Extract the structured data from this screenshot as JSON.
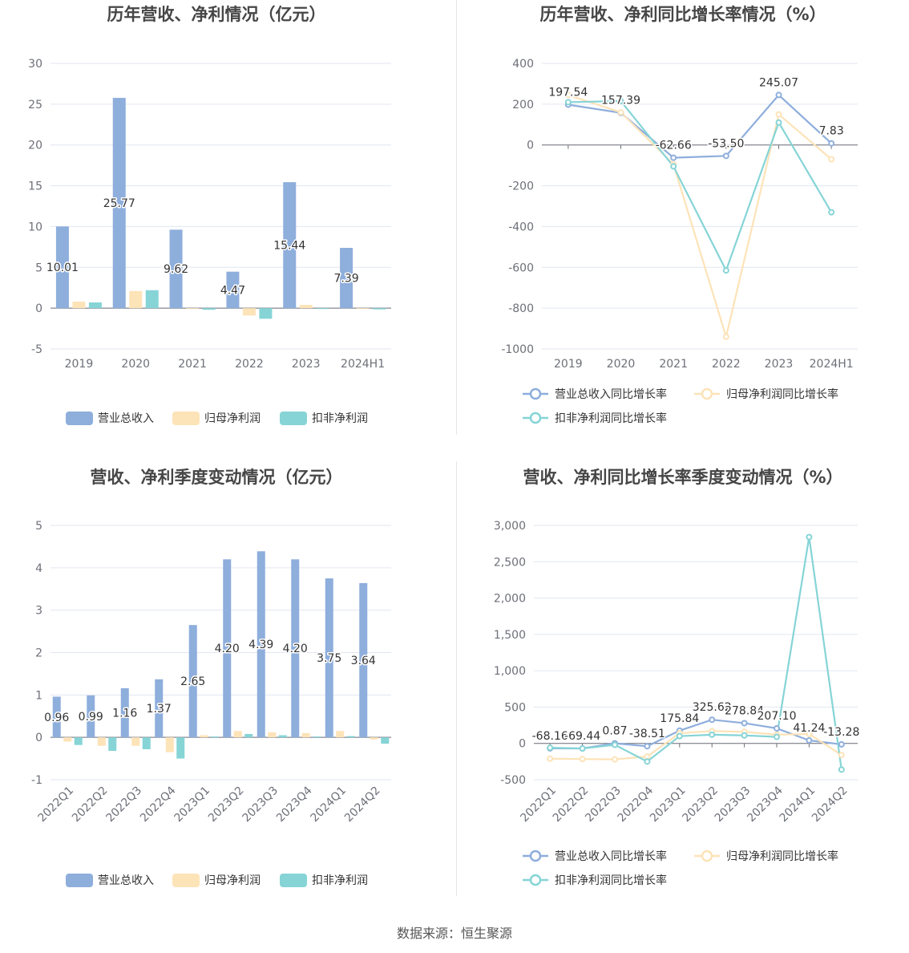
{
  "colors": {
    "revenue": "#8eaedc",
    "parent_profit": "#fde3b8",
    "deducted_profit": "#86d4d6",
    "revenue_line": "#8eaedc",
    "parent_line": "#fde3b8",
    "deducted_line": "#86d4d6"
  },
  "source": "数据来源：恒生聚源",
  "chart_data": [
    {
      "type": "bar",
      "title": "历年营收、净利情况（亿元）",
      "categories": [
        "2019",
        "2020",
        "2021",
        "2022",
        "2023",
        "2024H1"
      ],
      "ylim": [
        -5,
        30
      ],
      "yticks": [
        -5,
        0,
        5,
        10,
        15,
        20,
        25,
        30
      ],
      "legend_position": "bottom",
      "series": [
        {
          "name": "营业总收入",
          "values": [
            10.01,
            25.77,
            9.62,
            4.47,
            15.44,
            7.39
          ],
          "labels": [
            "10.01",
            "25.77",
            "9.62",
            "4.47",
            "15.44",
            "7.39"
          ]
        },
        {
          "name": "归母净利润",
          "values": [
            0.8,
            2.1,
            -0.1,
            -0.9,
            0.4,
            -0.1
          ]
        },
        {
          "name": "扣非净利润",
          "values": [
            0.7,
            2.2,
            -0.2,
            -1.3,
            -0.1,
            -0.15
          ]
        }
      ]
    },
    {
      "type": "line",
      "title": "历年营收、净利同比增长率情况（%）",
      "categories": [
        "2019",
        "2020",
        "2021",
        "2022",
        "2023",
        "2024H1"
      ],
      "ylim": [
        -1000,
        400
      ],
      "yticks": [
        -1000,
        -800,
        -600,
        -400,
        -200,
        0,
        200,
        400
      ],
      "legend_position": "bottom",
      "series": [
        {
          "name": "营业总收入同比增长率",
          "values": [
            197.54,
            157.39,
            -62.66,
            -53.5,
            245.07,
            7.83
          ],
          "labels": [
            "197.54",
            "157.39",
            "-62.66",
            "-53.50",
            "245.07",
            "7.83"
          ]
        },
        {
          "name": "归母净利润同比增长率",
          "values": [
            245,
            160,
            -95,
            -940,
            150,
            -70
          ]
        },
        {
          "name": "扣非净利润同比增长率",
          "values": [
            210,
            215,
            -105,
            -615,
            110,
            -330
          ]
        }
      ]
    },
    {
      "type": "bar",
      "title": "营收、净利季度变动情况（亿元）",
      "categories": [
        "2022Q1",
        "2022Q2",
        "2022Q3",
        "2022Q4",
        "2023Q1",
        "2023Q2",
        "2023Q3",
        "2023Q4",
        "2024Q1",
        "2024Q2"
      ],
      "ylim": [
        -1,
        5
      ],
      "yticks": [
        -1,
        0,
        1,
        2,
        3,
        4,
        5
      ],
      "legend_position": "bottom",
      "series": [
        {
          "name": "营业总收入",
          "values": [
            0.96,
            0.99,
            1.16,
            1.37,
            2.65,
            4.2,
            4.39,
            4.2,
            3.75,
            3.64
          ],
          "labels": [
            "0.96",
            "0.99",
            "1.16",
            "1.37",
            "2.65",
            "4.20",
            "4.39",
            "4.20",
            "3.75",
            "3.64"
          ]
        },
        {
          "name": "归母净利润",
          "values": [
            -0.1,
            -0.2,
            -0.2,
            -0.35,
            0.05,
            0.15,
            0.12,
            0.1,
            0.15,
            -0.05
          ]
        },
        {
          "name": "扣非净利润",
          "values": [
            -0.18,
            -0.32,
            -0.28,
            -0.5,
            0.02,
            0.08,
            0.05,
            0.02,
            0.03,
            -0.15
          ]
        }
      ]
    },
    {
      "type": "line",
      "title": "营收、净利同比增长率季度变动情况（%）",
      "categories": [
        "2022Q1",
        "2022Q2",
        "2022Q3",
        "2022Q4",
        "2023Q1",
        "2023Q2",
        "2023Q3",
        "2023Q4",
        "2024Q1",
        "2024Q2"
      ],
      "ylim": [
        -500,
        3000
      ],
      "yticks": [
        -500,
        0,
        500,
        1000,
        1500,
        2000,
        2500,
        3000
      ],
      "yticklabels": [
        "-500",
        "0",
        "500",
        "1,000",
        "1,500",
        "2,000",
        "2,500",
        "3,000"
      ],
      "legend_position": "bottom",
      "series": [
        {
          "name": "营业总收入同比增长率",
          "values": [
            -68.16,
            -69.44,
            0.87,
            -38.51,
            175.84,
            325.62,
            278.84,
            207.1,
            41.24,
            -13.28
          ],
          "labels": [
            "-68.16",
            "-69.44",
            "0.87",
            "-38.51",
            "175.84",
            "325.62",
            "278.84",
            "207.10",
            "41.24",
            "-13.28"
          ]
        },
        {
          "name": "归母净利润同比增长率",
          "values": [
            -210,
            -215,
            -220,
            -180,
            140,
            170,
            160,
            120,
            130,
            -160
          ]
        },
        {
          "name": "扣非净利润同比增长率",
          "values": [
            -60,
            -70,
            -20,
            -250,
            100,
            120,
            110,
            90,
            2840,
            -360
          ]
        }
      ]
    }
  ]
}
